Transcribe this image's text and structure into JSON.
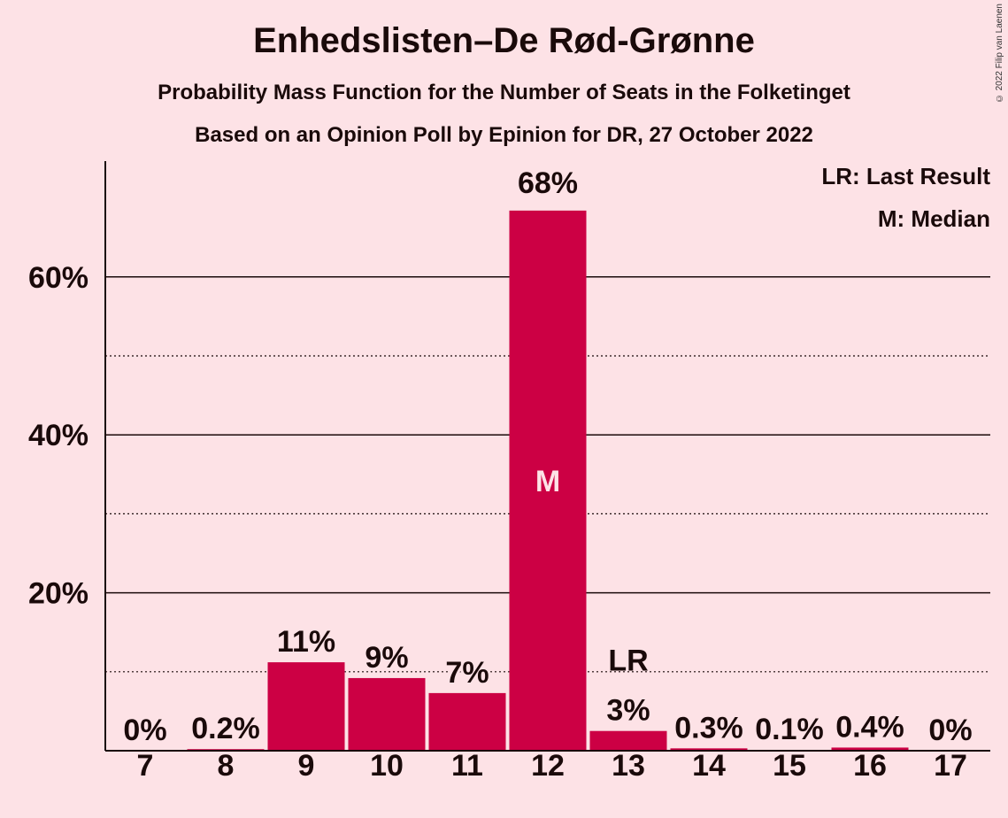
{
  "chart_data": {
    "type": "bar",
    "title": "Enhedslisten–De Rød-Grønne",
    "subtitle1": "Probability Mass Function for the Number of Seats in the Folketinget",
    "subtitle2": "Based on an Opinion Poll by Epinion for DR, 27 October 2022",
    "copyright": "© 2022 Filip van Laenen",
    "categories": [
      "7",
      "8",
      "9",
      "10",
      "11",
      "12",
      "13",
      "14",
      "15",
      "16",
      "17"
    ],
    "values": [
      0,
      0.2,
      11.2,
      9.2,
      7.3,
      68.4,
      2.5,
      0.3,
      0.1,
      0.4,
      0
    ],
    "value_labels": [
      "0%",
      "0.2%",
      "11%",
      "9%",
      "7%",
      "68%",
      "3%",
      "0.3%",
      "0.1%",
      "0.4%",
      "0%"
    ],
    "ylim": [
      0,
      75
    ],
    "y_ticks": [
      {
        "value": 20,
        "label": "20%"
      },
      {
        "value": 40,
        "label": "40%"
      },
      {
        "value": 60,
        "label": "60%"
      }
    ],
    "minor_grid": [
      10,
      30,
      50
    ],
    "median_index": 5,
    "median_marker": "M",
    "last_result_index": 6,
    "last_result_marker": "LR",
    "legend": [
      "LR: Last Result",
      "M: Median"
    ],
    "legend_position": "top-right",
    "colors": {
      "bar": "#cc0044",
      "background": "#fde2e6",
      "text": "#1a0a0a",
      "median_text": "#fde2e6"
    }
  }
}
